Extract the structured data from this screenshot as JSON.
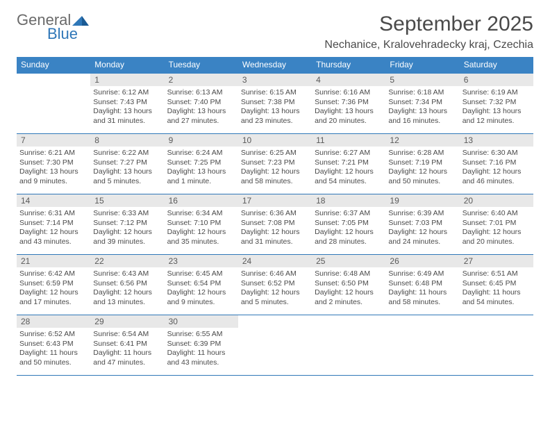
{
  "brand": {
    "name_gray": "General",
    "name_blue": "Blue"
  },
  "title": "September 2025",
  "location": "Nechanice, Kralovehradecky kraj, Czechia",
  "colors": {
    "header_bg": "#3a83c4",
    "divider": "#2f77b8",
    "daynum_bg": "#e8e8e8",
    "text": "#4a4a4a",
    "page_bg": "#ffffff"
  },
  "weekday_labels": [
    "Sunday",
    "Monday",
    "Tuesday",
    "Wednesday",
    "Thursday",
    "Friday",
    "Saturday"
  ],
  "weeks": [
    [
      null,
      {
        "day": "1",
        "sunrise": "Sunrise: 6:12 AM",
        "sunset": "Sunset: 7:43 PM",
        "daylight": "Daylight: 13 hours and 31 minutes."
      },
      {
        "day": "2",
        "sunrise": "Sunrise: 6:13 AM",
        "sunset": "Sunset: 7:40 PM",
        "daylight": "Daylight: 13 hours and 27 minutes."
      },
      {
        "day": "3",
        "sunrise": "Sunrise: 6:15 AM",
        "sunset": "Sunset: 7:38 PM",
        "daylight": "Daylight: 13 hours and 23 minutes."
      },
      {
        "day": "4",
        "sunrise": "Sunrise: 6:16 AM",
        "sunset": "Sunset: 7:36 PM",
        "daylight": "Daylight: 13 hours and 20 minutes."
      },
      {
        "day": "5",
        "sunrise": "Sunrise: 6:18 AM",
        "sunset": "Sunset: 7:34 PM",
        "daylight": "Daylight: 13 hours and 16 minutes."
      },
      {
        "day": "6",
        "sunrise": "Sunrise: 6:19 AM",
        "sunset": "Sunset: 7:32 PM",
        "daylight": "Daylight: 13 hours and 12 minutes."
      }
    ],
    [
      {
        "day": "7",
        "sunrise": "Sunrise: 6:21 AM",
        "sunset": "Sunset: 7:30 PM",
        "daylight": "Daylight: 13 hours and 9 minutes."
      },
      {
        "day": "8",
        "sunrise": "Sunrise: 6:22 AM",
        "sunset": "Sunset: 7:27 PM",
        "daylight": "Daylight: 13 hours and 5 minutes."
      },
      {
        "day": "9",
        "sunrise": "Sunrise: 6:24 AM",
        "sunset": "Sunset: 7:25 PM",
        "daylight": "Daylight: 13 hours and 1 minute."
      },
      {
        "day": "10",
        "sunrise": "Sunrise: 6:25 AM",
        "sunset": "Sunset: 7:23 PM",
        "daylight": "Daylight: 12 hours and 58 minutes."
      },
      {
        "day": "11",
        "sunrise": "Sunrise: 6:27 AM",
        "sunset": "Sunset: 7:21 PM",
        "daylight": "Daylight: 12 hours and 54 minutes."
      },
      {
        "day": "12",
        "sunrise": "Sunrise: 6:28 AM",
        "sunset": "Sunset: 7:19 PM",
        "daylight": "Daylight: 12 hours and 50 minutes."
      },
      {
        "day": "13",
        "sunrise": "Sunrise: 6:30 AM",
        "sunset": "Sunset: 7:16 PM",
        "daylight": "Daylight: 12 hours and 46 minutes."
      }
    ],
    [
      {
        "day": "14",
        "sunrise": "Sunrise: 6:31 AM",
        "sunset": "Sunset: 7:14 PM",
        "daylight": "Daylight: 12 hours and 43 minutes."
      },
      {
        "day": "15",
        "sunrise": "Sunrise: 6:33 AM",
        "sunset": "Sunset: 7:12 PM",
        "daylight": "Daylight: 12 hours and 39 minutes."
      },
      {
        "day": "16",
        "sunrise": "Sunrise: 6:34 AM",
        "sunset": "Sunset: 7:10 PM",
        "daylight": "Daylight: 12 hours and 35 minutes."
      },
      {
        "day": "17",
        "sunrise": "Sunrise: 6:36 AM",
        "sunset": "Sunset: 7:08 PM",
        "daylight": "Daylight: 12 hours and 31 minutes."
      },
      {
        "day": "18",
        "sunrise": "Sunrise: 6:37 AM",
        "sunset": "Sunset: 7:05 PM",
        "daylight": "Daylight: 12 hours and 28 minutes."
      },
      {
        "day": "19",
        "sunrise": "Sunrise: 6:39 AM",
        "sunset": "Sunset: 7:03 PM",
        "daylight": "Daylight: 12 hours and 24 minutes."
      },
      {
        "day": "20",
        "sunrise": "Sunrise: 6:40 AM",
        "sunset": "Sunset: 7:01 PM",
        "daylight": "Daylight: 12 hours and 20 minutes."
      }
    ],
    [
      {
        "day": "21",
        "sunrise": "Sunrise: 6:42 AM",
        "sunset": "Sunset: 6:59 PM",
        "daylight": "Daylight: 12 hours and 17 minutes."
      },
      {
        "day": "22",
        "sunrise": "Sunrise: 6:43 AM",
        "sunset": "Sunset: 6:56 PM",
        "daylight": "Daylight: 12 hours and 13 minutes."
      },
      {
        "day": "23",
        "sunrise": "Sunrise: 6:45 AM",
        "sunset": "Sunset: 6:54 PM",
        "daylight": "Daylight: 12 hours and 9 minutes."
      },
      {
        "day": "24",
        "sunrise": "Sunrise: 6:46 AM",
        "sunset": "Sunset: 6:52 PM",
        "daylight": "Daylight: 12 hours and 5 minutes."
      },
      {
        "day": "25",
        "sunrise": "Sunrise: 6:48 AM",
        "sunset": "Sunset: 6:50 PM",
        "daylight": "Daylight: 12 hours and 2 minutes."
      },
      {
        "day": "26",
        "sunrise": "Sunrise: 6:49 AM",
        "sunset": "Sunset: 6:48 PM",
        "daylight": "Daylight: 11 hours and 58 minutes."
      },
      {
        "day": "27",
        "sunrise": "Sunrise: 6:51 AM",
        "sunset": "Sunset: 6:45 PM",
        "daylight": "Daylight: 11 hours and 54 minutes."
      }
    ],
    [
      {
        "day": "28",
        "sunrise": "Sunrise: 6:52 AM",
        "sunset": "Sunset: 6:43 PM",
        "daylight": "Daylight: 11 hours and 50 minutes."
      },
      {
        "day": "29",
        "sunrise": "Sunrise: 6:54 AM",
        "sunset": "Sunset: 6:41 PM",
        "daylight": "Daylight: 11 hours and 47 minutes."
      },
      {
        "day": "30",
        "sunrise": "Sunrise: 6:55 AM",
        "sunset": "Sunset: 6:39 PM",
        "daylight": "Daylight: 11 hours and 43 minutes."
      },
      null,
      null,
      null,
      null
    ]
  ]
}
